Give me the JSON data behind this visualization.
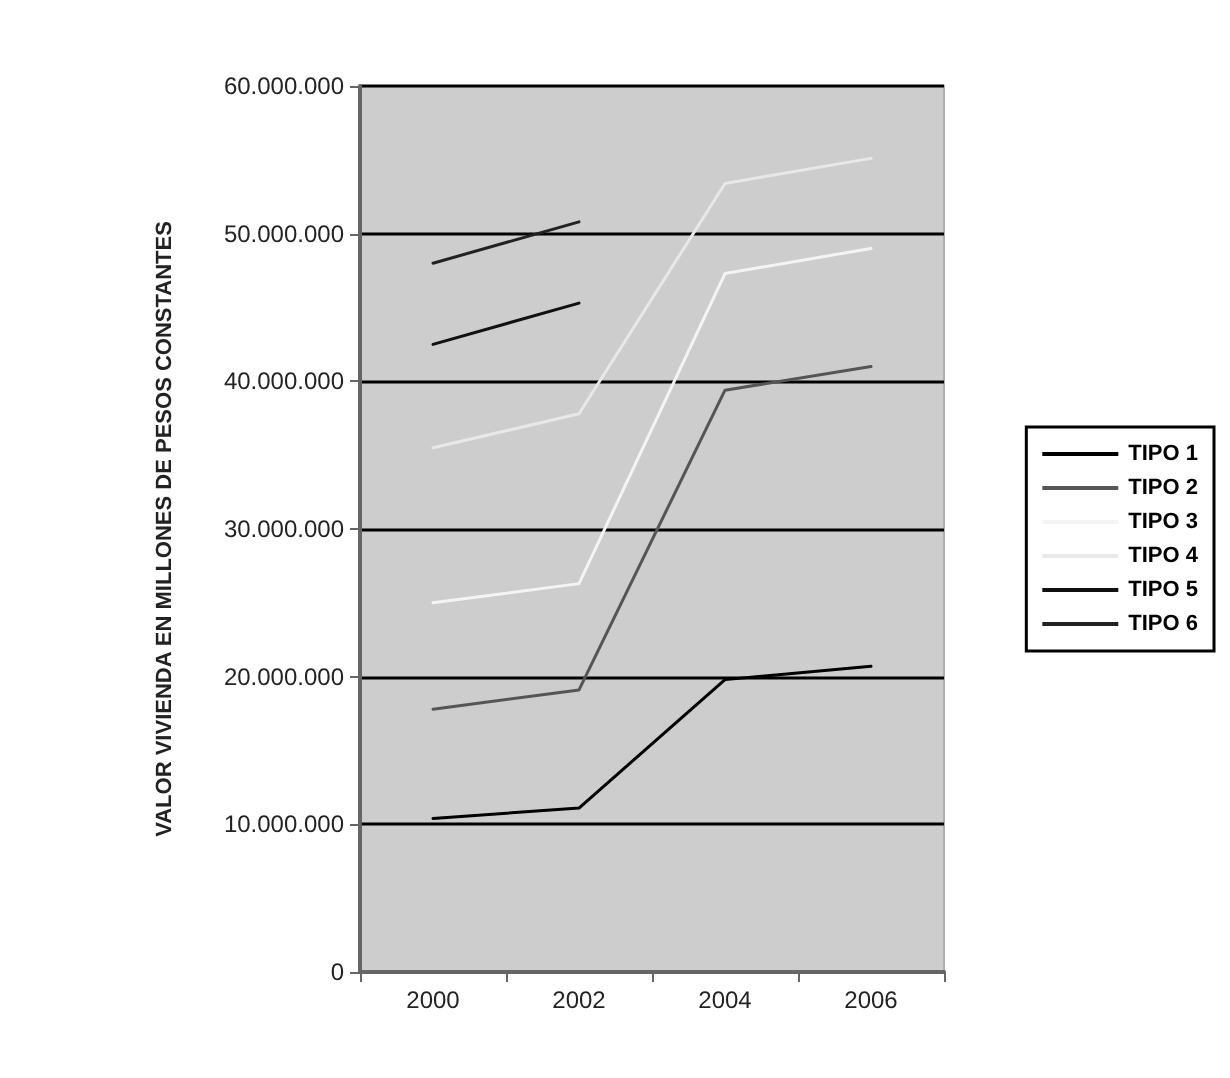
{
  "chart_data": {
    "type": "line",
    "ylabel": "VALOR VIVIENDA EN MILLONES DE PESOS CONSTANTES",
    "categories": [
      "2000",
      "2002",
      "2004",
      "2006"
    ],
    "series": [
      {
        "name": "TIPO 1",
        "color": "#000000",
        "values": [
          10400000,
          11100000,
          19800000,
          20700000
        ]
      },
      {
        "name": "TIPO 2",
        "color": "#555555",
        "values": [
          17800000,
          19100000,
          39400000,
          41000000
        ]
      },
      {
        "name": "TIPO 3",
        "color": "#f4f4f4",
        "values": [
          25000000,
          26300000,
          47300000,
          49000000
        ]
      },
      {
        "name": "TIPO 4",
        "color": "#e8e8e8",
        "values": [
          35500000,
          37800000,
          53400000,
          55100000
        ]
      },
      {
        "name": "TIPO 5",
        "color": "#111111",
        "values": [
          42500000,
          45300000,
          null,
          null
        ]
      },
      {
        "name": "TIPO 6",
        "color": "#222222",
        "values": [
          48000000,
          50800000,
          null,
          null
        ]
      }
    ],
    "ylim": [
      0,
      60000000
    ],
    "yticks": [
      {
        "value": 0,
        "label": "0"
      },
      {
        "value": 10000000,
        "label": "10.000.000"
      },
      {
        "value": 20000000,
        "label": "20.000.000"
      },
      {
        "value": 30000000,
        "label": "30.000.000"
      },
      {
        "value": 40000000,
        "label": "40.000.000"
      },
      {
        "value": 50000000,
        "label": "50.000.000"
      },
      {
        "value": 60000000,
        "label": "60.000.000"
      }
    ],
    "grid": "y",
    "legend": "right",
    "marker": "none",
    "line_style": "solid"
  }
}
